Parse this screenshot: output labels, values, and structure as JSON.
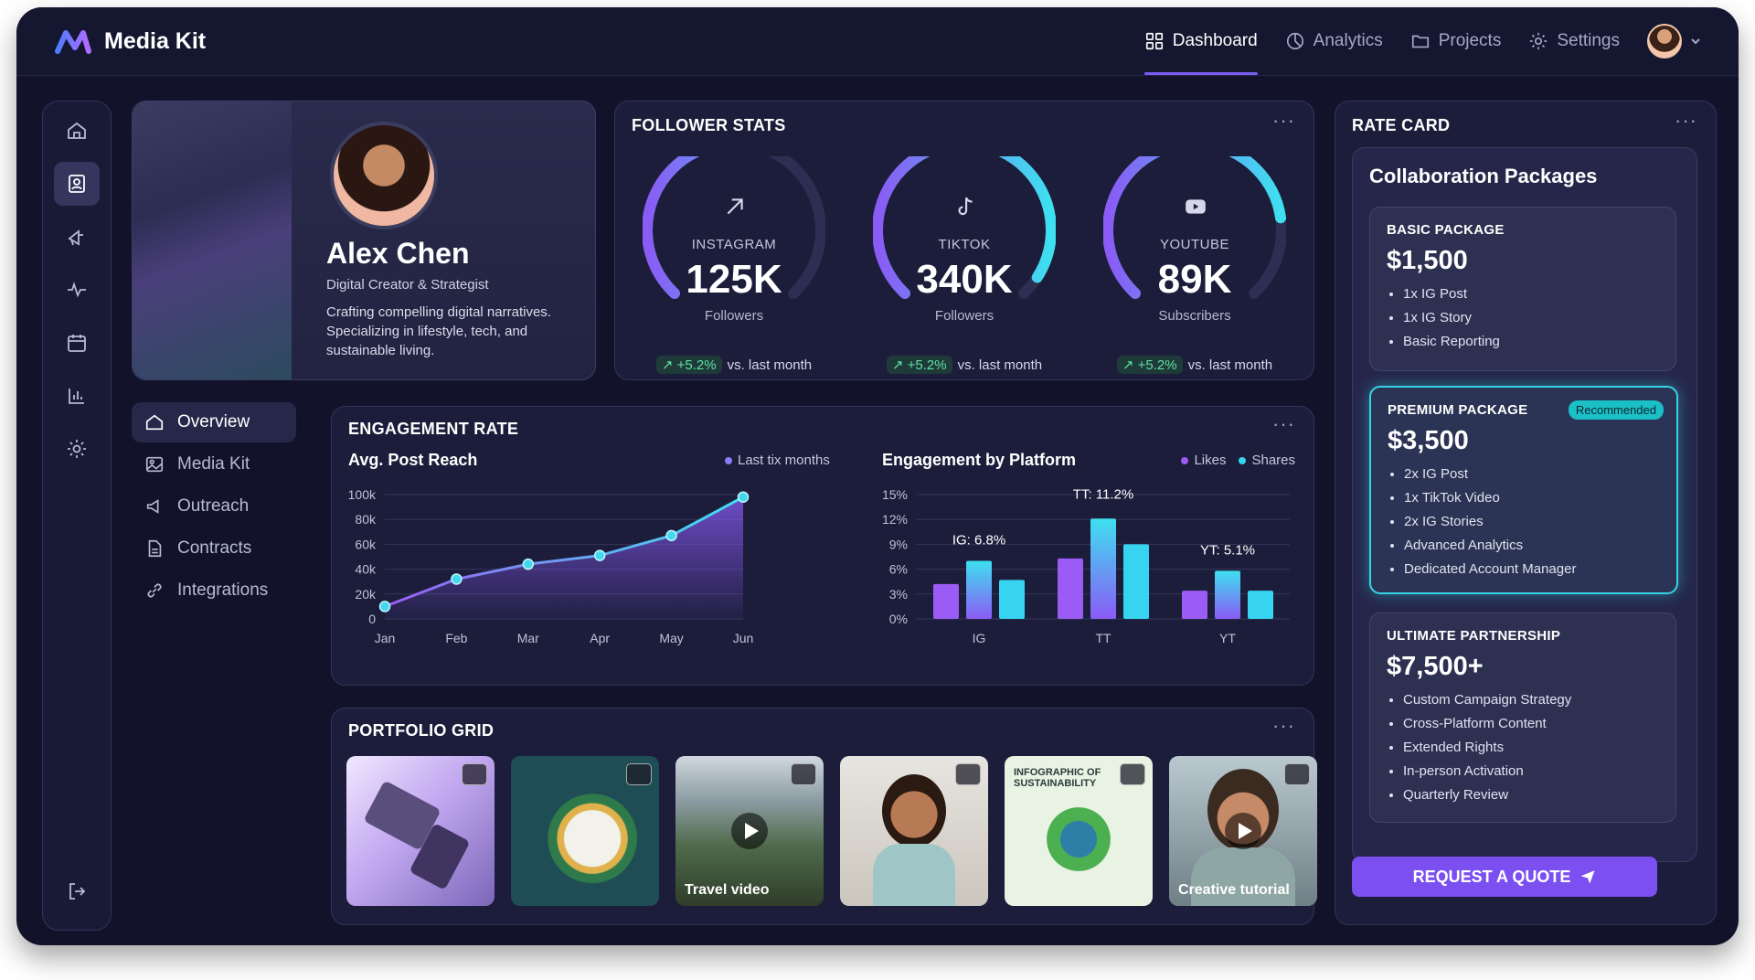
{
  "app": {
    "title": "Media Kit"
  },
  "nav": {
    "items": [
      {
        "label": "Dashboard",
        "icon": "grid-icon",
        "active": true
      },
      {
        "label": "Analytics",
        "icon": "pie-icon"
      },
      {
        "label": "Projects",
        "icon": "folder-icon"
      },
      {
        "label": "Settings",
        "icon": "gear-icon"
      }
    ]
  },
  "profile": {
    "name": "Alex Chen",
    "role": "Digital Creator & Strategist",
    "bio": "Crafting compelling digital narratives. Specializing in lifestyle, tech, and sustainable living."
  },
  "sidenav": {
    "items": [
      "Overview",
      "Media Kit",
      "Outreach",
      "Contracts",
      "Integrations"
    ]
  },
  "follower_stats": {
    "title": "FOLLOWER STATS",
    "platforms": [
      {
        "label": "INSTAGRAM",
        "value": "125K",
        "sub": "Followers",
        "trend": "+5.2%",
        "trend_text": "vs. last month",
        "level": 0.55
      },
      {
        "label": "TIKTOK",
        "value": "340K",
        "sub": "Followers",
        "trend": "+5.2%",
        "trend_text": "vs. last month",
        "level": 0.95
      },
      {
        "label": "YOUTUBE",
        "value": "89K",
        "sub": "Subscribers",
        "trend": "+5.2%",
        "trend_text": "vs. last month",
        "level": 0.8
      }
    ]
  },
  "engagement": {
    "title": "ENGAGEMENT RATE",
    "reach_title": "Avg. Post Reach",
    "reach_legend": "Last tix months",
    "platform_title": "Engagement by Platform",
    "platform_legend": [
      "Likes",
      "Shares"
    ]
  },
  "chart_data": [
    {
      "type": "line",
      "title": "Avg. Post Reach",
      "x": [
        "Jan",
        "Feb",
        "Mar",
        "Apr",
        "May",
        "Jun"
      ],
      "series": [
        {
          "name": "Last tix months",
          "values": [
            10000,
            32000,
            44000,
            51000,
            67000,
            98000
          ]
        }
      ],
      "ylim": [
        0,
        100000
      ],
      "yticks": [
        "0",
        "20k",
        "40k",
        "60k",
        "80k",
        "100k"
      ],
      "grid": true
    },
    {
      "type": "bar",
      "title": "Engagement by Platform",
      "categories": [
        "IG",
        "TT",
        "YT"
      ],
      "series": [
        {
          "name": "Likes",
          "values": [
            4.2,
            7.3,
            3.4
          ]
        },
        {
          "name": "",
          "values": [
            7.0,
            12.1,
            5.8
          ]
        },
        {
          "name": "Shares",
          "values": [
            4.7,
            9.0,
            3.4
          ]
        }
      ],
      "annotations": [
        "IG: 6.8%",
        "TT: 11.2%",
        "YT: 5.1%"
      ],
      "ylim": [
        0,
        15
      ],
      "yticks": [
        "0%",
        "3%",
        "6%",
        "9%",
        "12%",
        "15%"
      ],
      "legend": "top-right",
      "grid": true
    }
  ],
  "portfolio": {
    "title": "PORTFOLIO GRID",
    "items": [
      {
        "caption": "",
        "kind": "video"
      },
      {
        "caption": "",
        "kind": "image"
      },
      {
        "caption": "Travel video",
        "kind": "video"
      },
      {
        "caption": "",
        "kind": "image"
      },
      {
        "caption": "INFOGRAPHIC OF SUSTAINABILITY",
        "kind": "image"
      },
      {
        "caption": "Creative tutorial",
        "kind": "video"
      }
    ]
  },
  "rate_card": {
    "title": "RATE CARD",
    "section_title": "Collaboration Packages",
    "packages": [
      {
        "name": "BASIC PACKAGE",
        "price": "$1,500",
        "features": [
          "1x IG Post",
          "1x IG Story",
          "Basic Reporting"
        ]
      },
      {
        "name": "PREMIUM PACKAGE",
        "price": "$3,500",
        "badge": "Recommended",
        "features": [
          "2x IG Post",
          "1x TikTok Video",
          "2x IG Stories",
          "Advanced Analytics",
          "Dedicated Account Manager"
        ]
      },
      {
        "name": "ULTIMATE PARTNERSHIP",
        "price": "$7,500+",
        "features": [
          "Custom Campaign Strategy",
          "Cross-Platform Content",
          "Extended Rights",
          "In-person Activation",
          "Quarterly Review"
        ]
      }
    ],
    "cta": "REQUEST A QUOTE"
  },
  "colors": {
    "accent": "#7b5cf0",
    "cyan": "#35d4e4",
    "bg": "#12132b",
    "panel": "#1c1d3b"
  }
}
